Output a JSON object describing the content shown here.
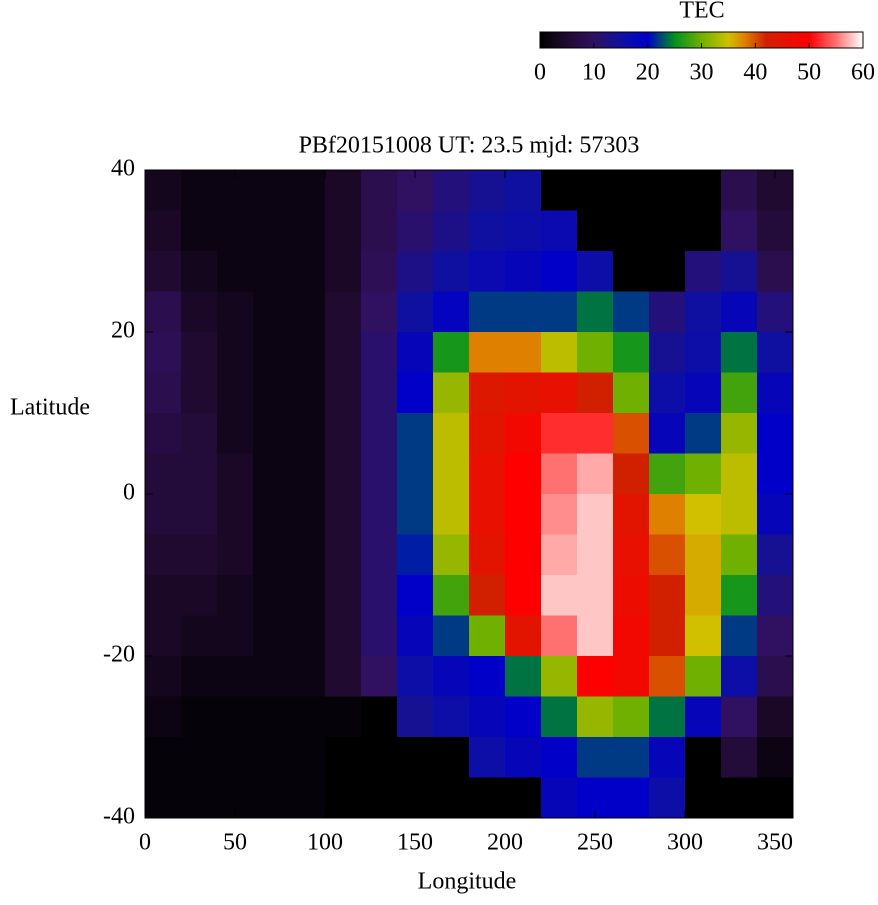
{
  "chart_data": {
    "type": "heatmap",
    "title": "PBf20151008  UT: 23.5  mjd: 57303",
    "x_label": "Longitude",
    "y_label": "Latitude",
    "x": [
      10,
      30,
      50,
      70,
      90,
      110,
      130,
      150,
      170,
      190,
      210,
      230,
      250,
      270,
      290,
      310,
      330,
      350
    ],
    "y": [
      37.5,
      32.5,
      27.5,
      22.5,
      17.5,
      12.5,
      7.5,
      2.5,
      -2.5,
      -7.5,
      -12.5,
      -17.5,
      -22.5,
      -27.5,
      -32.5,
      -37.5
    ],
    "z": [
      [
        3,
        2,
        2,
        2,
        2,
        4,
        8,
        10,
        12,
        14,
        15,
        0,
        0,
        0,
        0,
        0,
        8,
        5
      ],
      [
        4,
        2,
        2,
        2,
        2,
        4,
        8,
        11,
        13,
        15,
        16,
        17,
        0,
        0,
        0,
        0,
        10,
        6
      ],
      [
        5,
        3,
        2,
        2,
        2,
        4,
        9,
        13,
        15,
        17,
        18,
        20,
        16,
        0,
        0,
        12,
        14,
        8
      ],
      [
        8,
        4,
        3,
        2,
        2,
        5,
        10,
        15,
        19,
        22,
        22,
        22,
        24,
        22,
        12,
        15,
        18,
        12
      ],
      [
        9,
        5,
        3,
        2,
        2,
        5,
        11,
        18,
        26,
        38,
        38,
        34,
        30,
        26,
        14,
        16,
        24,
        15
      ],
      [
        8,
        5,
        3,
        2,
        2,
        5,
        11,
        20,
        32,
        44,
        45,
        46,
        42,
        30,
        16,
        18,
        28,
        18
      ],
      [
        7,
        6,
        3,
        2,
        2,
        5,
        11,
        22,
        34,
        45,
        48,
        52,
        52,
        40,
        18,
        22,
        32,
        20
      ],
      [
        6,
        6,
        4,
        2,
        2,
        5,
        11,
        22,
        34,
        46,
        50,
        55,
        57,
        42,
        28,
        30,
        34,
        20
      ],
      [
        6,
        6,
        4,
        2,
        2,
        5,
        11,
        22,
        34,
        46,
        50,
        56,
        58,
        45,
        38,
        35,
        34,
        18
      ],
      [
        5,
        5,
        4,
        2,
        2,
        5,
        11,
        21,
        32,
        45,
        50,
        57,
        58,
        46,
        40,
        36,
        30,
        14
      ],
      [
        4,
        4,
        3,
        2,
        2,
        5,
        11,
        20,
        28,
        42,
        50,
        58,
        58,
        47,
        42,
        36,
        26,
        12
      ],
      [
        4,
        3,
        3,
        2,
        2,
        5,
        11,
        18,
        22,
        30,
        45,
        55,
        58,
        48,
        42,
        35,
        22,
        10
      ],
      [
        3,
        2,
        2,
        2,
        2,
        5,
        10,
        16,
        18,
        20,
        24,
        32,
        50,
        48,
        40,
        30,
        16,
        8
      ],
      [
        2,
        1,
        1,
        1,
        1,
        1,
        0,
        14,
        16,
        18,
        20,
        24,
        32,
        30,
        24,
        18,
        10,
        4
      ],
      [
        1,
        1,
        1,
        1,
        1,
        0,
        0,
        0,
        0,
        16,
        18,
        20,
        22,
        22,
        18,
        0,
        6,
        2
      ],
      [
        1,
        1,
        1,
        1,
        1,
        0,
        0,
        0,
        0,
        0,
        0,
        18,
        20,
        20,
        16,
        0,
        0,
        0
      ]
    ],
    "xlim": [
      0,
      360
    ],
    "xticks": [
      0,
      50,
      100,
      150,
      200,
      250,
      300,
      350
    ],
    "ylim": [
      -40,
      40
    ],
    "yticks": [
      -40,
      -20,
      0,
      20,
      40
    ],
    "colorbar": {
      "title": "TEC",
      "lim": [
        0,
        60
      ],
      "ticks": [
        0,
        10,
        20,
        30,
        40,
        50,
        60
      ]
    },
    "colormap": [
      {
        "value": 0,
        "color": "#000000"
      },
      {
        "value": 5,
        "color": "#200a30"
      },
      {
        "value": 10,
        "color": "#301060"
      },
      {
        "value": 15,
        "color": "#1010a0"
      },
      {
        "value": 20,
        "color": "#0000c8"
      },
      {
        "value": 25,
        "color": "#009020"
      },
      {
        "value": 30,
        "color": "#70b000"
      },
      {
        "value": 35,
        "color": "#d0c000"
      },
      {
        "value": 38,
        "color": "#e08000"
      },
      {
        "value": 42,
        "color": "#d02000"
      },
      {
        "value": 50,
        "color": "#ff0000"
      },
      {
        "value": 55,
        "color": "#ff7070"
      },
      {
        "value": 60,
        "color": "#ffffff"
      }
    ]
  }
}
